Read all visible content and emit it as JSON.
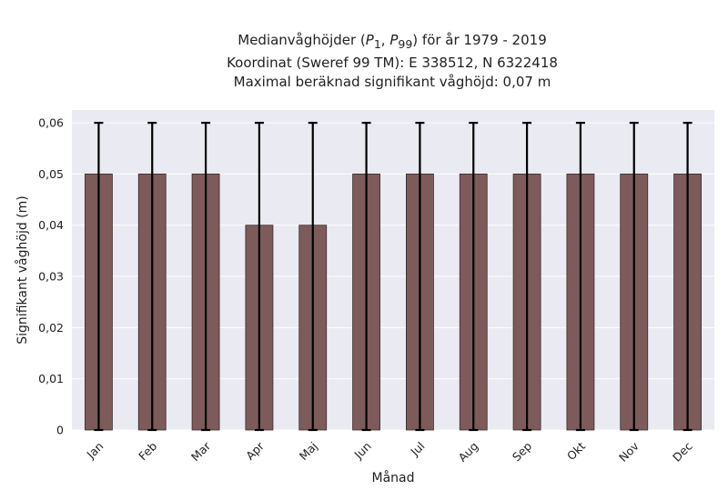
{
  "chart_data": {
    "type": "bar",
    "title_lines": [
      "Medianvåghöjder (P1, P99) för år 1979 - 2019",
      "Koordinat (Sweref 99 TM): E 338512, N 6322418",
      "Maximal beräknad signifikant våghöjd: 0,07 m"
    ],
    "title_math": {
      "prefix": "Medianvåghöjder (",
      "p_low": "P",
      "p_low_sub": "1",
      "sep": ", ",
      "p_high": "P",
      "p_high_sub": "99",
      "suffix": ") för år 1979 - 2019"
    },
    "xlabel": "Månad",
    "ylabel": "Signifikant våghöjd (m)",
    "categories": [
      "Jan",
      "Feb",
      "Mar",
      "Apr",
      "Maj",
      "Jun",
      "Jul",
      "Aug",
      "Sep",
      "Okt",
      "Nov",
      "Dec"
    ],
    "values": [
      0.05,
      0.05,
      0.05,
      0.04,
      0.04,
      0.05,
      0.05,
      0.05,
      0.05,
      0.05,
      0.05,
      0.05
    ],
    "error_low": [
      0,
      0,
      0,
      0,
      0,
      0,
      0,
      0,
      0,
      0,
      0,
      0
    ],
    "error_high": [
      0.06,
      0.06,
      0.06,
      0.06,
      0.06,
      0.06,
      0.06,
      0.06,
      0.06,
      0.06,
      0.06,
      0.06
    ],
    "ylim": [
      0,
      0.0625
    ],
    "yticks": [
      0,
      0.01,
      0.02,
      0.03,
      0.04,
      0.05,
      0.06
    ],
    "ytick_labels": [
      "0",
      "0,01",
      "0,02",
      "0,03",
      "0,04",
      "0,05",
      "0,06"
    ],
    "grid": true,
    "colors": {
      "bar": "#7d5b5b",
      "bar_edge": "#3a2a2a",
      "error_bar": "#000000",
      "plot_background": "#eaeaf2",
      "grid": "#ffffff"
    }
  }
}
